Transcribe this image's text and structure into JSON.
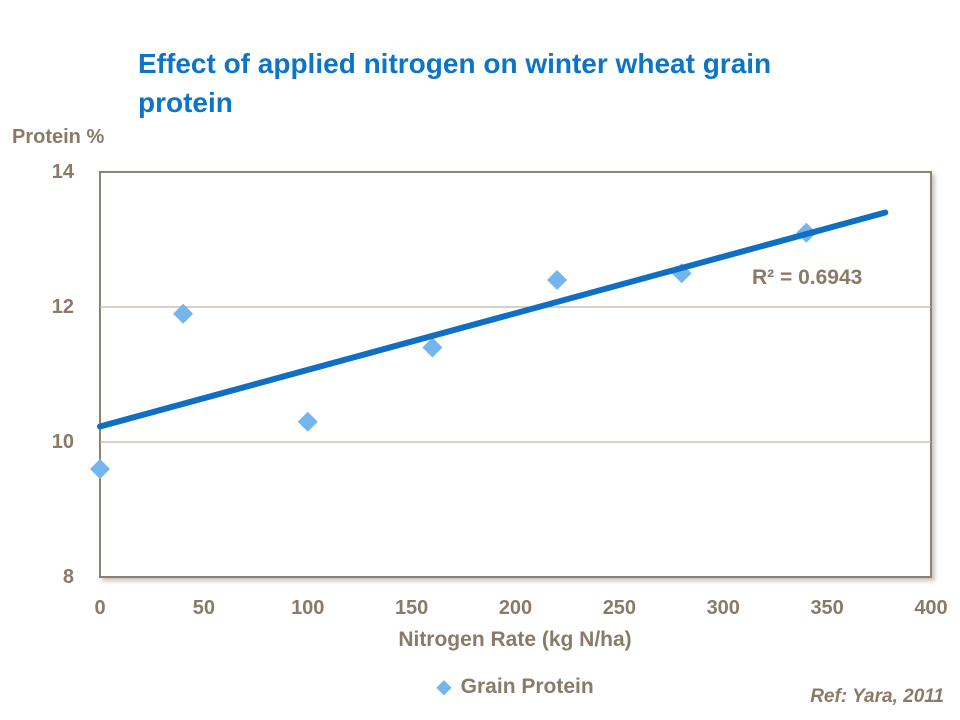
{
  "slide": {
    "title_lines": [
      "Effect of applied nitrogen on winter wheat grain",
      "protein"
    ],
    "reference": "Ref: Yara, 2011"
  },
  "chart": {
    "y_axis_title": "Protein %",
    "x_axis_title": "Nitrogen Rate (kg N/ha)",
    "r2_annotation": "R² = 0.6943",
    "legend_marker_icon": "diamond-icon",
    "legend_marker_glyph": "◆",
    "legend_label": "Grain Protein"
  },
  "colors": {
    "title_blue": "#0d74c6",
    "axis_text_brown": "#8a7a68",
    "marker_blue": "#74b5ee",
    "trendline_blue": "#0f6fc5",
    "gridline_gray": "#bdb4a8",
    "plot_border_brown": "#8f8171"
  },
  "chart_data": {
    "type": "scatter",
    "title": "Effect of applied nitrogen on winter wheat grain protein",
    "xlabel": "Nitrogen Rate (kg N/ha)",
    "ylabel": "Protein %",
    "series": [
      {
        "name": "Grain Protein",
        "x": [
          0,
          40,
          100,
          160,
          220,
          280,
          340
        ],
        "y": [
          9.6,
          11.9,
          10.3,
          11.4,
          12.4,
          12.5,
          13.1
        ]
      }
    ],
    "xlim": [
      0,
      400
    ],
    "ylim": [
      8,
      14
    ],
    "x_ticks": [
      0,
      50,
      100,
      150,
      200,
      250,
      300,
      350,
      400
    ],
    "y_ticks": [
      14,
      12,
      10,
      8
    ],
    "gridlines": "horizontal-inner-only",
    "trendline": {
      "type": "linear",
      "x_start": 0,
      "y_start": 10.23,
      "x_end": 378,
      "y_end": 13.4,
      "r_squared": 0.6943
    },
    "legend_position": "bottom-center"
  }
}
